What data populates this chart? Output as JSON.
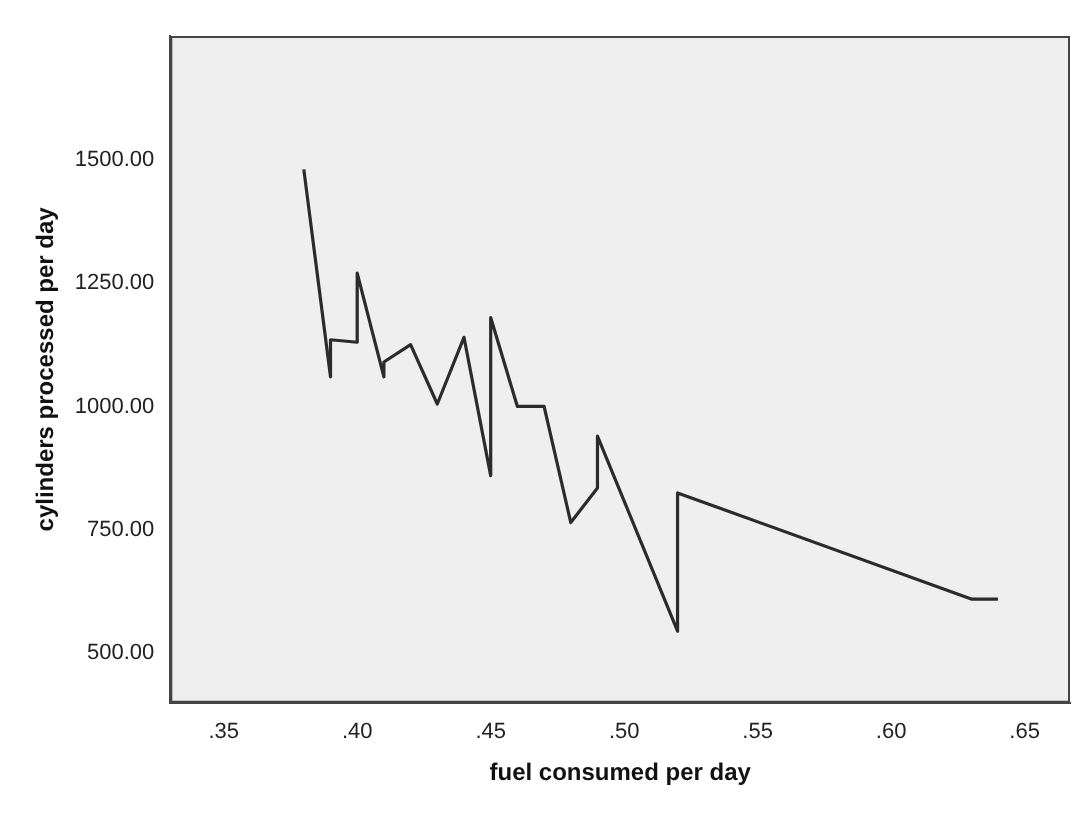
{
  "chart_data": {
    "type": "line",
    "xlabel": "fuel consumed per day",
    "ylabel": "cylinders processed per day",
    "x": [
      0.38,
      0.39,
      0.39,
      0.4,
      0.4,
      0.41,
      0.41,
      0.42,
      0.43,
      0.44,
      0.45,
      0.45,
      0.46,
      0.47,
      0.48,
      0.49,
      0.49,
      0.52,
      0.52,
      0.63,
      0.64
    ],
    "series": [
      {
        "color": "#2b2b2b",
        "values": [
          1480,
          1060,
          1135,
          1130,
          1270,
          1060,
          1090,
          1125,
          1005,
          1140,
          860,
          1180,
          1000,
          1000,
          765,
          835,
          940,
          545,
          825,
          610,
          610
        ]
      }
    ],
    "xlim": [
      0.33,
      0.667
    ],
    "xticks": [
      {
        "value": 0.35,
        "label": ".35"
      },
      {
        "value": 0.4,
        "label": ".40"
      },
      {
        "value": 0.45,
        "label": ".45"
      },
      {
        "value": 0.5,
        "label": ".50"
      },
      {
        "value": 0.55,
        "label": ".55"
      },
      {
        "value": 0.6,
        "label": ".60"
      },
      {
        "value": 0.65,
        "label": ".65"
      }
    ],
    "ylim": [
      400,
      1750
    ],
    "yticks": [
      {
        "value": 500,
        "label": "500.00"
      },
      {
        "value": 750,
        "label": "750.00"
      },
      {
        "value": 1000,
        "label": "1000.00"
      },
      {
        "value": 1250,
        "label": "1250.00"
      },
      {
        "value": 1500,
        "label": "1500.00"
      }
    ],
    "grid": false,
    "legend": false,
    "marker": "none",
    "line_style": "solid"
  }
}
